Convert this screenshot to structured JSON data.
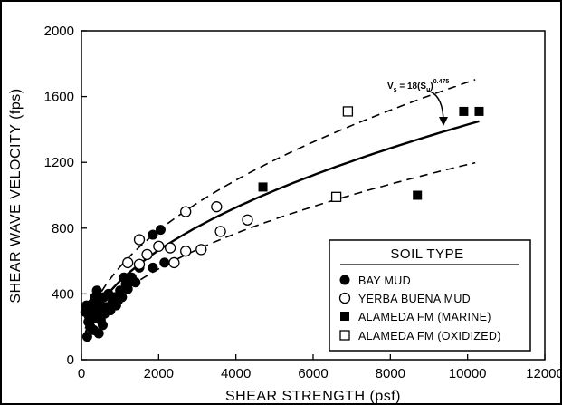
{
  "chart_data": {
    "type": "scatter",
    "xlabel": "SHEAR STRENGTH (psf)",
    "ylabel": "SHEAR WAVE VELOCITY (fps)",
    "xlim": [
      0,
      12000
    ],
    "ylim": [
      0,
      2000
    ],
    "x_ticks": [
      "0",
      "2000",
      "4000",
      "6000",
      "8000",
      "10000",
      "12000"
    ],
    "y_ticks": [
      "0",
      "400",
      "800",
      "1200",
      "1600",
      "2000"
    ],
    "grid": false,
    "legend_title": "SOIL TYPE",
    "legend_position": "bottom-right",
    "series": [
      {
        "name": "BAY MUD",
        "marker": "filled-circle",
        "points": [
          [
            150,
            140
          ],
          [
            200,
            260
          ],
          [
            230,
            200
          ],
          [
            250,
            300
          ],
          [
            280,
            340
          ],
          [
            300,
            250
          ],
          [
            320,
            180
          ],
          [
            350,
            380
          ],
          [
            380,
            280
          ],
          [
            400,
            420
          ],
          [
            420,
            320
          ],
          [
            450,
            160
          ],
          [
            480,
            360
          ],
          [
            500,
            240
          ],
          [
            520,
            300
          ],
          [
            550,
            210
          ],
          [
            580,
            380
          ],
          [
            600,
            280
          ],
          [
            650,
            320
          ],
          [
            700,
            400
          ],
          [
            750,
            300
          ],
          [
            800,
            350
          ],
          [
            850,
            380
          ],
          [
            900,
            330
          ],
          [
            950,
            360
          ],
          [
            1000,
            420
          ],
          [
            1050,
            380
          ],
          [
            1100,
            500
          ],
          [
            1150,
            460
          ],
          [
            1200,
            430
          ],
          [
            1250,
            480
          ],
          [
            1300,
            500
          ],
          [
            1400,
            470
          ],
          [
            1500,
            560
          ],
          [
            1850,
            560
          ],
          [
            1850,
            760
          ],
          [
            2050,
            790
          ],
          [
            2150,
            590
          ],
          [
            100,
            290
          ],
          [
            180,
            230
          ],
          [
            130,
            330
          ]
        ]
      },
      {
        "name": "YERBA BUENA MUD",
        "marker": "open-circle",
        "points": [
          [
            1200,
            590
          ],
          [
            1500,
            580
          ],
          [
            1500,
            730
          ],
          [
            1700,
            640
          ],
          [
            2000,
            690
          ],
          [
            2300,
            680
          ],
          [
            2400,
            590
          ],
          [
            2700,
            660
          ],
          [
            2700,
            900
          ],
          [
            3100,
            670
          ],
          [
            3500,
            930
          ],
          [
            3600,
            780
          ],
          [
            4300,
            850
          ]
        ]
      },
      {
        "name": "ALAMEDA FM (MARINE)",
        "marker": "filled-square",
        "points": [
          [
            4700,
            1050
          ],
          [
            8700,
            1000
          ],
          [
            9900,
            1510
          ],
          [
            10300,
            1510
          ]
        ]
      },
      {
        "name": "ALAMEDA FM (OXIDIZED)",
        "marker": "open-square",
        "points": [
          [
            6600,
            990
          ],
          [
            6900,
            1510
          ]
        ]
      }
    ],
    "fit_curve": {
      "label": "V_s = 18(S_u)^0.475",
      "coefficient": 18,
      "exponent": 0.475,
      "x_range": [
        100,
        10300
      ]
    },
    "bounds": {
      "upper_factor": 1.18,
      "lower_factor": 0.83,
      "upper_x_range": [
        100,
        10200
      ],
      "lower_x_range": [
        100,
        10200
      ]
    },
    "annotation": {
      "main": "V",
      "sub1": "s",
      "mid": " = 18(S",
      "sub2": "u",
      "close": ")",
      "sup": "0.475"
    }
  }
}
